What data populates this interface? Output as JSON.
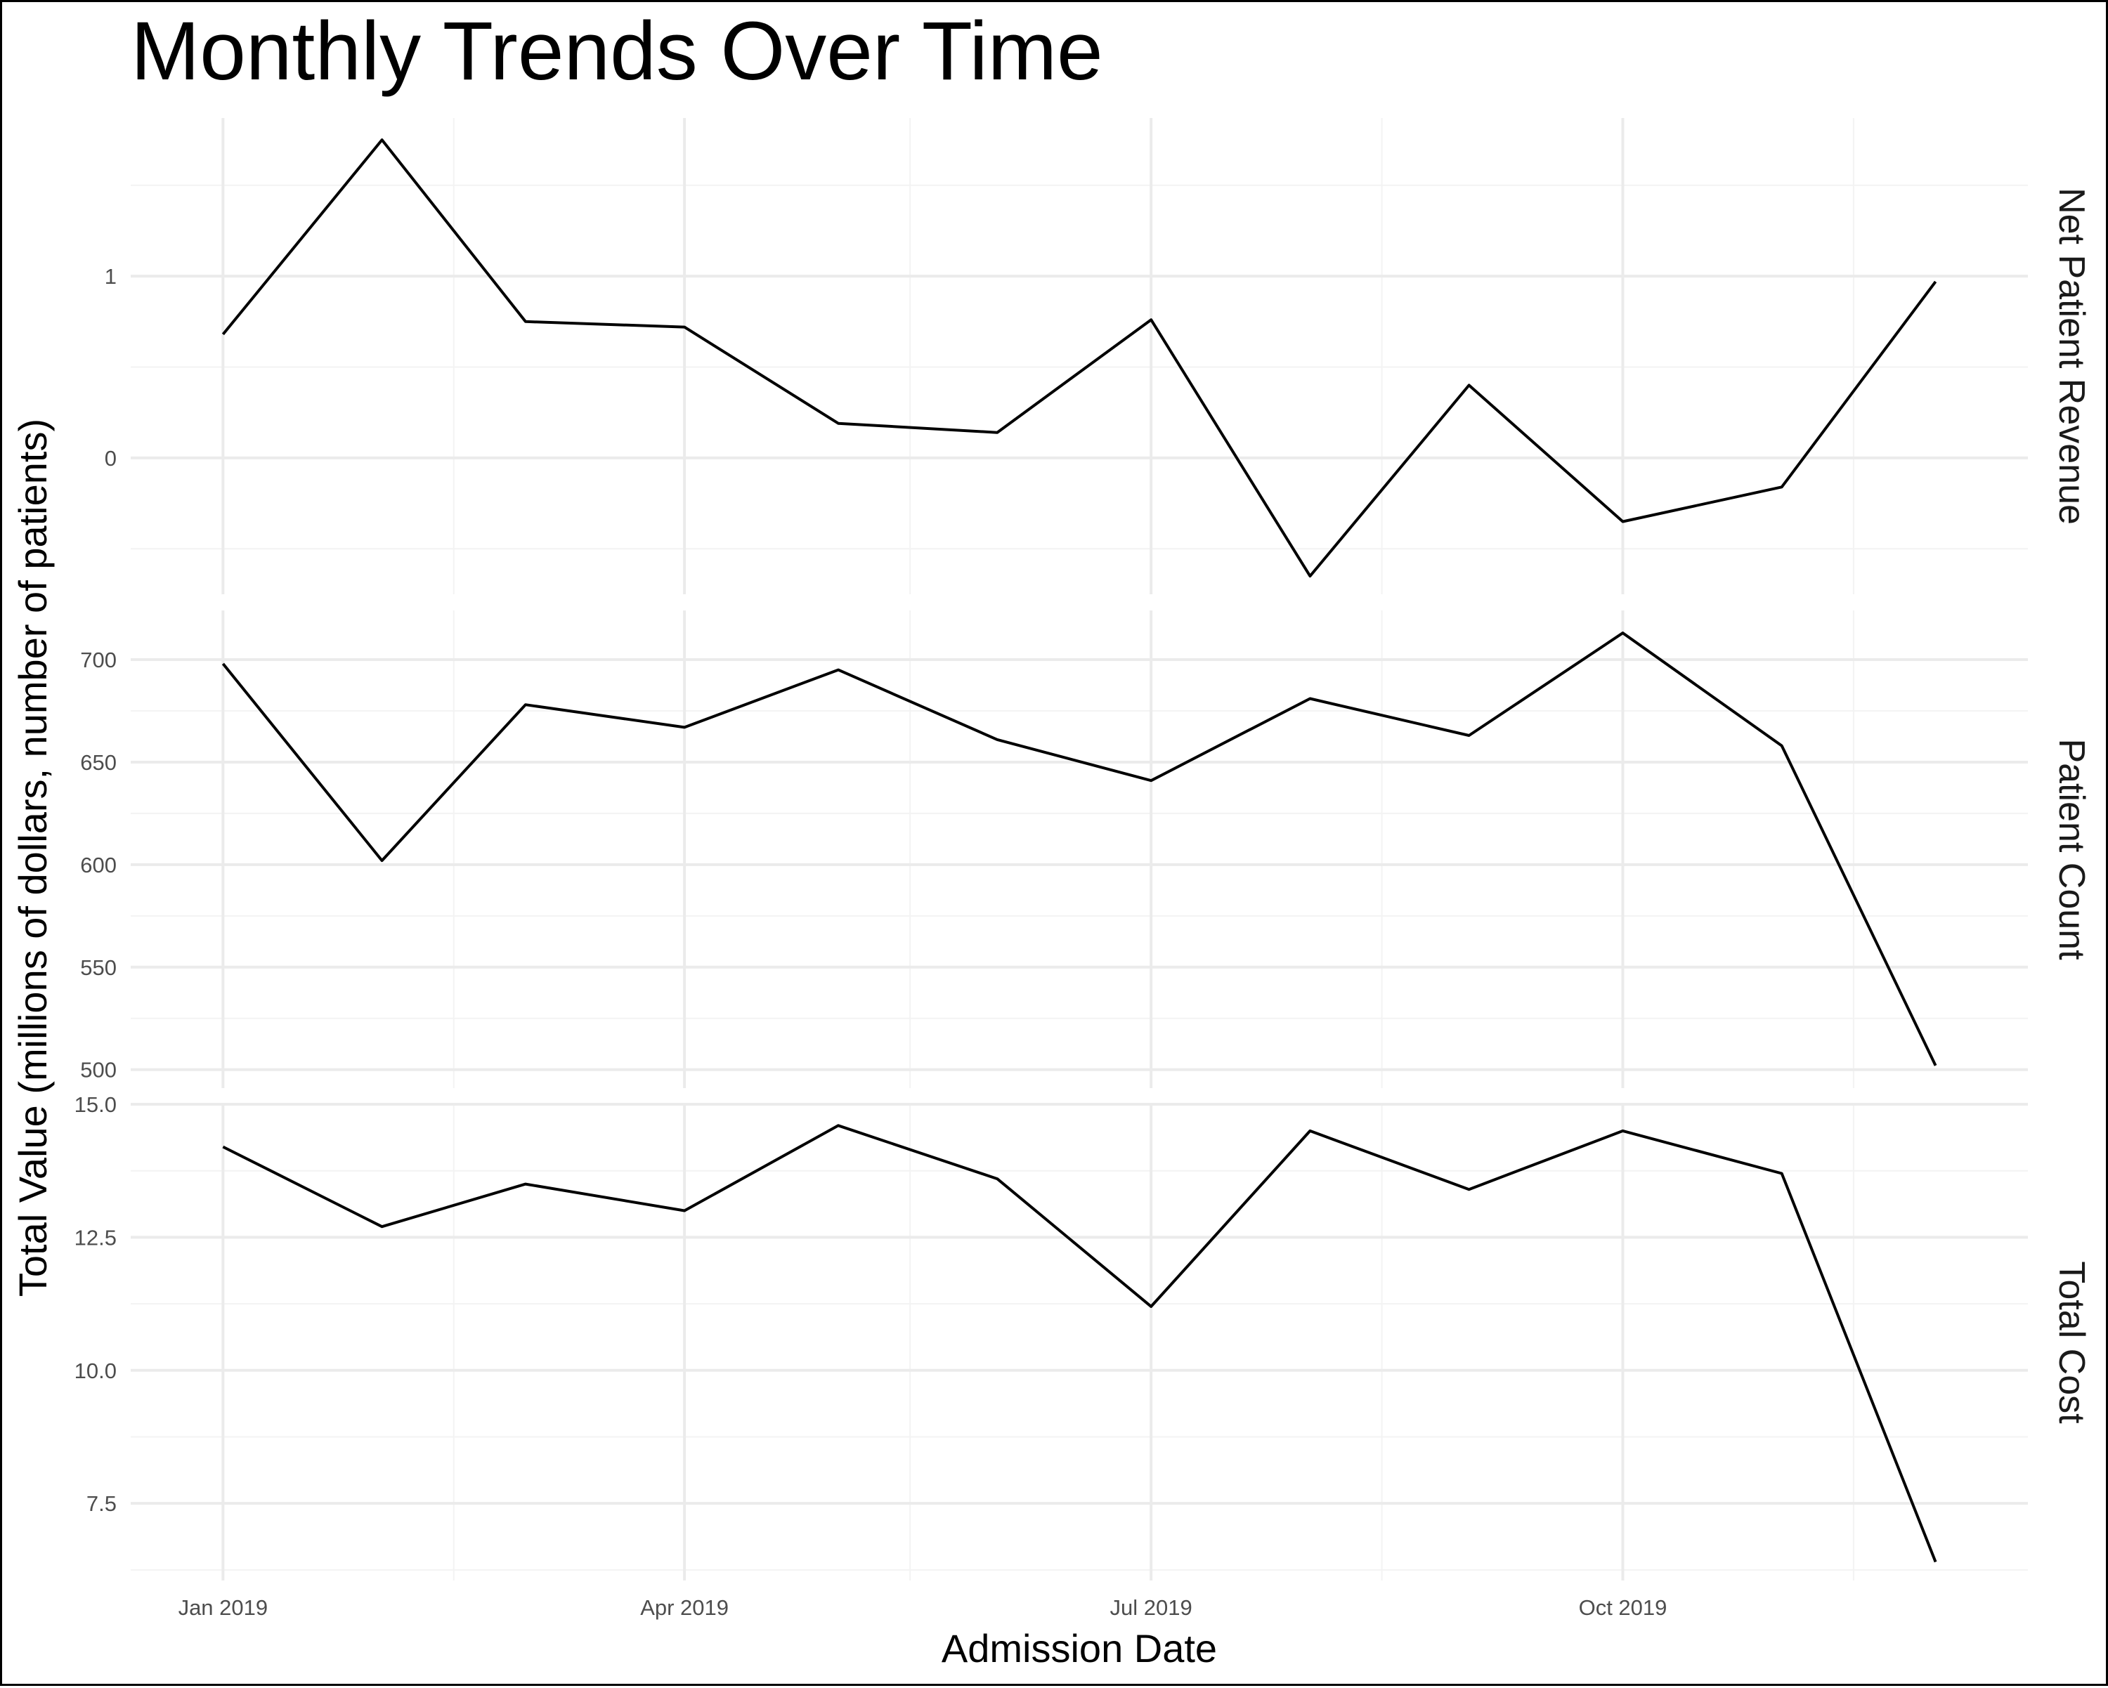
{
  "chart_data": {
    "type": "line",
    "title": "Monthly Trends Over Time",
    "xlabel": "Admission Date",
    "ylabel": "Total Value (millions of dollars, number of patients)",
    "x": [
      "2019-01-01",
      "2019-02-01",
      "2019-03-01",
      "2019-04-01",
      "2019-05-01",
      "2019-06-01",
      "2019-07-01",
      "2019-08-01",
      "2019-09-01",
      "2019-10-01",
      "2019-11-01",
      "2019-12-01"
    ],
    "x_ticks": [
      {
        "date": "2019-01-01",
        "label": "Jan 2019"
      },
      {
        "date": "2019-04-01",
        "label": "Apr 2019"
      },
      {
        "date": "2019-07-01",
        "label": "Jul 2019"
      },
      {
        "date": "2019-10-01",
        "label": "Oct 2019"
      }
    ],
    "x_minor_breaks": [
      "2019-02-15",
      "2019-05-15",
      "2019-08-15",
      "2019-11-15"
    ],
    "xlim": [
      "2018-12-14",
      "2019-12-19"
    ],
    "grid": true,
    "legend": "none",
    "line_color": "#000000",
    "facets": [
      {
        "name": "Net Patient Revenue",
        "values": [
          0.68,
          1.75,
          0.75,
          0.72,
          0.19,
          0.14,
          0.76,
          -0.65,
          0.4,
          -0.35,
          -0.16,
          0.97
        ],
        "ylim": [
          -0.75,
          1.87
        ],
        "y_ticks": [
          {
            "value": 0,
            "label": "0"
          },
          {
            "value": 1,
            "label": "1"
          }
        ],
        "y_minor_breaks": [
          -0.5,
          0.5,
          1.5
        ]
      },
      {
        "name": "Patient Count",
        "values": [
          698,
          602,
          678,
          667,
          695,
          661,
          641,
          681,
          663,
          713,
          658,
          502
        ],
        "ylim": [
          491,
          724
        ],
        "y_ticks": [
          {
            "value": 500,
            "label": "500"
          },
          {
            "value": 550,
            "label": "550"
          },
          {
            "value": 600,
            "label": "600"
          },
          {
            "value": 650,
            "label": "650"
          },
          {
            "value": 700,
            "label": "700"
          }
        ],
        "y_minor_breaks": [
          525,
          575,
          625,
          675
        ]
      },
      {
        "name": "Total Cost",
        "values": [
          14.2,
          12.7,
          13.5,
          13.0,
          14.6,
          13.6,
          11.2,
          14.5,
          13.4,
          14.5,
          13.7,
          6.4
        ],
        "ylim": [
          6.05,
          15.0
        ],
        "y_ticks": [
          {
            "value": 7.5,
            "label": "7.5"
          },
          {
            "value": 10,
            "label": "10.0"
          },
          {
            "value": 12.5,
            "label": "12.5"
          },
          {
            "value": 15,
            "label": "15.0"
          }
        ],
        "y_minor_breaks": [
          6.25,
          8.75,
          11.25,
          13.75
        ]
      }
    ]
  }
}
